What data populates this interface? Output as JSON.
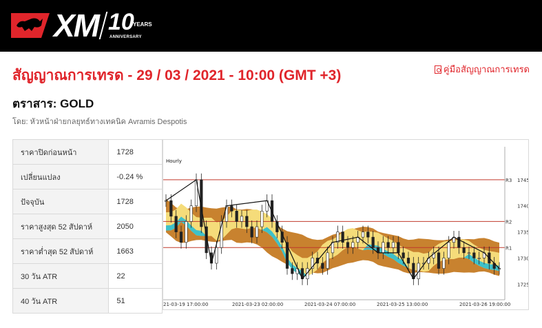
{
  "header": {
    "brand": "XM",
    "anniversary_number": "10",
    "anniversary_years": "YEARS",
    "anniversary_word": "ANNIVERSARY"
  },
  "title": "สัญญาณการเทรด - 29 / 03 / 2021 - 10:00 (GMT +3)",
  "guide_link": "คู่มือสัญญาณการเทรด",
  "instrument_label": "ตราสาร: GOLD",
  "author": "โดย: หัวหน้าฝ่ายกลยุทธ์ทางเทคนิค Avramis Despotis",
  "stats": [
    {
      "label": "ราคาปิดก่อนหน้า",
      "value": "1728"
    },
    {
      "label": "เปลี่ยนแปลง",
      "value": "-0.24 %"
    },
    {
      "label": "ปัจจุบัน",
      "value": "1728"
    },
    {
      "label": "ราคาสูงสุด 52 สัปดาห์",
      "value": "2050"
    },
    {
      "label": "ราคาต่ำสุด 52 สัปดาห์",
      "value": "1663"
    },
    {
      "label": "30 วัน ATR",
      "value": "22"
    },
    {
      "label": "40 วัน ATR",
      "value": "51"
    }
  ],
  "colors": {
    "accent_red": "#e0252b",
    "cloud_brown": "#c8822f",
    "cloud_yellow": "#f5dc7a",
    "cloud_teal": "#3fc1c9",
    "level_line": "#c0392b"
  },
  "chart_data": {
    "type": "candlestick",
    "timeframe_label": "Hourly",
    "x_tick_labels": [
      "21-03-19 17:00:00",
      "2021-03-23 02:00:00",
      "2021-03-24 07:00:00",
      "2021-03-25 13:00:00",
      "2021-03-26 19:00:00"
    ],
    "y_ticks": [
      1725,
      1730,
      1735,
      1740,
      1745
    ],
    "ylim": [
      1722,
      1750
    ],
    "levels": [
      {
        "name": "R3",
        "value": 1745
      },
      {
        "name": "R2",
        "value": 1737
      },
      {
        "name": "R1",
        "value": 1732
      }
    ],
    "close_series": [
      1741,
      1738,
      1735,
      1733,
      1737,
      1740,
      1745,
      1736,
      1731,
      1729,
      1732,
      1737,
      1740,
      1739,
      1737,
      1738,
      1736,
      1734,
      1736,
      1739,
      1741,
      1737,
      1735,
      1733,
      1728,
      1727,
      1728,
      1726,
      1728,
      1730,
      1729,
      1728,
      1731,
      1733,
      1735,
      1733,
      1732,
      1733,
      1734,
      1735,
      1734,
      1732,
      1731,
      1733,
      1732,
      1733,
      1731,
      1730,
      1729,
      1726,
      1729,
      1729,
      1730,
      1731,
      1728,
      1730,
      1733,
      1734,
      1732,
      1731,
      1731,
      1730,
      1730,
      1731,
      1729,
      1728,
      1728
    ]
  }
}
